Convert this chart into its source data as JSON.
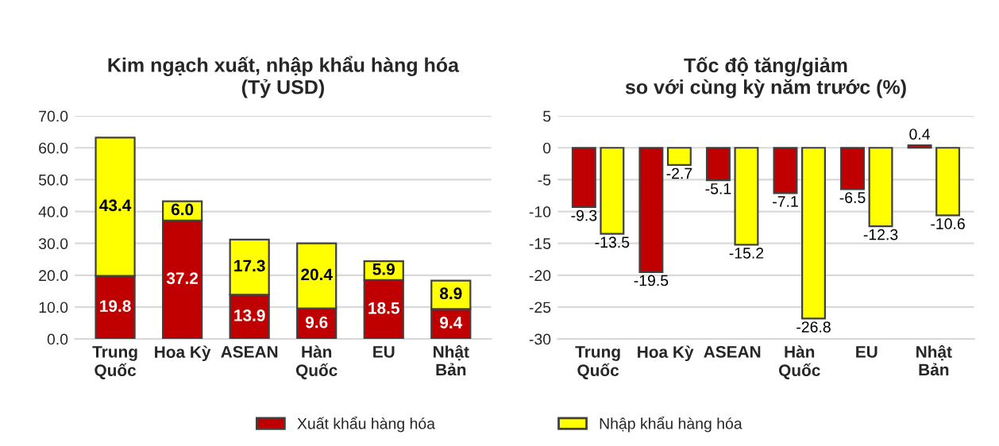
{
  "chart_data": [
    {
      "type": "bar",
      "title": "Kim ngạch xuất, nhập khẩu hàng hóa\n(Tỷ USD)",
      "categories": [
        "Trung\nQuốc",
        "Hoa Kỳ",
        "ASEAN",
        "Hàn\nQuốc",
        "EU",
        "Nhật\nBản"
      ],
      "stacked": true,
      "series": [
        {
          "name": "Xuất khẩu hàng hóa",
          "color": "#c00000",
          "values": [
            19.8,
            37.2,
            13.9,
            9.6,
            18.5,
            9.4
          ],
          "value_labels": [
            "19.8",
            "37.2",
            "13.9",
            "9.6",
            "18.5",
            "9.4"
          ]
        },
        {
          "name": "Nhập khẩu hàng hóa",
          "color": "#ffff00",
          "values": [
            43.4,
            6.0,
            17.3,
            20.4,
            5.9,
            8.9
          ],
          "value_labels": [
            "43.4",
            "6.0",
            "17.3",
            "20.4",
            "5.9",
            "8.9"
          ]
        }
      ],
      "ylim": [
        0,
        70
      ],
      "yticks": [
        {
          "value": 0,
          "label": "0.0"
        },
        {
          "value": 10,
          "label": "10.0"
        },
        {
          "value": 20,
          "label": "20.0"
        },
        {
          "value": 30,
          "label": "30.0"
        },
        {
          "value": 40,
          "label": "40.0"
        },
        {
          "value": 50,
          "label": "50.0"
        },
        {
          "value": 60,
          "label": "60.0"
        },
        {
          "value": 70,
          "label": "70.0"
        }
      ],
      "grid": "y",
      "legend": "bottom"
    },
    {
      "type": "bar",
      "title": "Tốc độ tăng/giảm\nso với cùng kỳ năm trước (%)",
      "categories": [
        "Trung\nQuốc",
        "Hoa Kỳ",
        "ASEAN",
        "Hàn\nQuốc",
        "EU",
        "Nhật\nBản"
      ],
      "series": [
        {
          "color": "#c00000",
          "values": [
            -9.3,
            -19.5,
            -5.1,
            -7.1,
            -6.5,
            0.4
          ],
          "value_labels": [
            "-9.3",
            "-19.5",
            "-5.1",
            "-7.1",
            "-6.5",
            "0.4"
          ]
        },
        {
          "color": "#ffff00",
          "values": [
            -13.5,
            -2.7,
            -15.2,
            -26.8,
            -12.3,
            -10.6
          ],
          "value_labels": [
            "-13.5",
            "-2.7",
            "-15.2",
            "-26.8",
            "-12.3",
            "-10.6"
          ]
        }
      ],
      "ylim": [
        -30,
        5
      ],
      "yticks": [
        -30,
        -25,
        -20,
        -15,
        -10,
        -5,
        0,
        5
      ],
      "grid": "y"
    }
  ]
}
